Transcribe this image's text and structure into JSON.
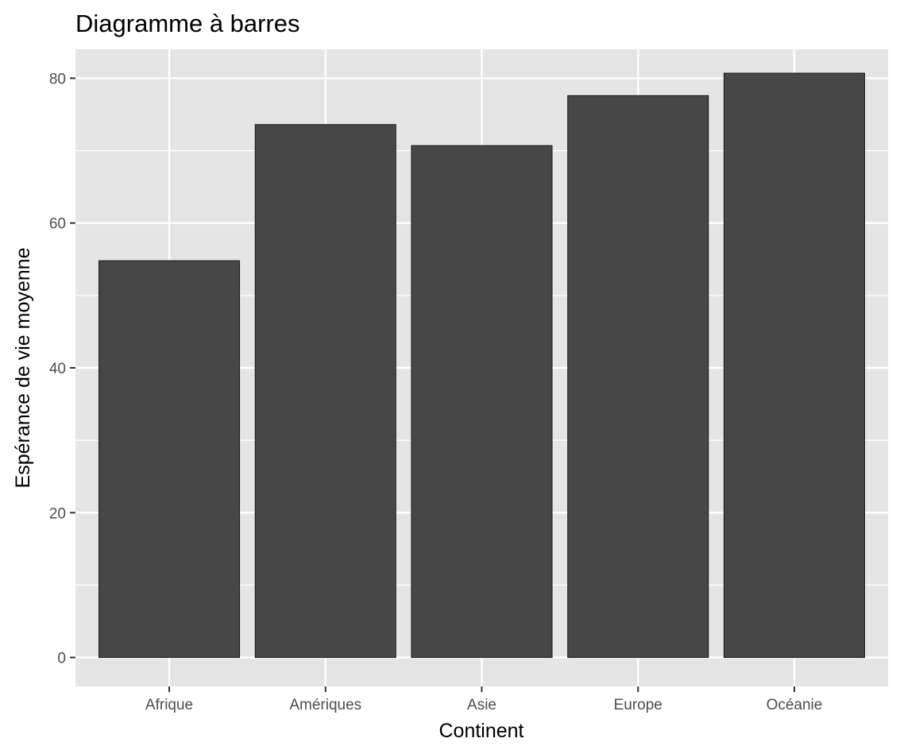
{
  "chart_data": {
    "type": "bar",
    "title": "Diagramme à barres",
    "xlabel": "Continent",
    "ylabel": "Espérance de vie moyenne",
    "categories": [
      "Afrique",
      "Amériques",
      "Asie",
      "Europe",
      "Océanie"
    ],
    "values": [
      54.8,
      73.6,
      70.7,
      77.6,
      80.7
    ],
    "ylim": [
      -4,
      84
    ],
    "yticks": [
      0,
      20,
      40,
      60,
      80
    ],
    "ytick_labels": [
      "0",
      "20",
      "40",
      "60",
      "80"
    ],
    "grid": true,
    "colors": {
      "bar": "#474747",
      "panel": "#e5e5e5",
      "grid": "#ffffff"
    }
  }
}
